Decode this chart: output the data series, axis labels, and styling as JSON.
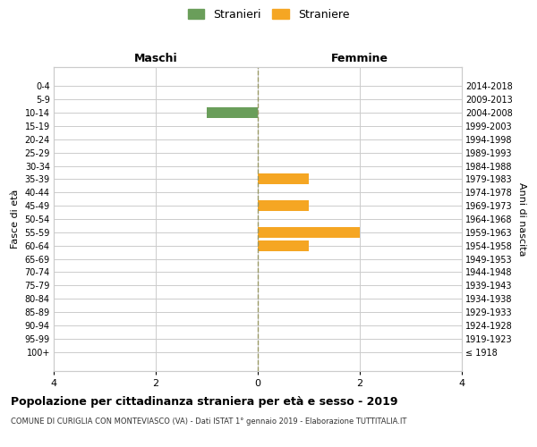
{
  "age_groups": [
    "100+",
    "95-99",
    "90-94",
    "85-89",
    "80-84",
    "75-79",
    "70-74",
    "65-69",
    "60-64",
    "55-59",
    "50-54",
    "45-49",
    "40-44",
    "35-39",
    "30-34",
    "25-29",
    "20-24",
    "15-19",
    "10-14",
    "5-9",
    "0-4"
  ],
  "birth_years": [
    "≤ 1918",
    "1919-1923",
    "1924-1928",
    "1929-1933",
    "1934-1938",
    "1939-1943",
    "1944-1948",
    "1949-1953",
    "1954-1958",
    "1959-1963",
    "1964-1968",
    "1969-1973",
    "1974-1978",
    "1979-1983",
    "1984-1988",
    "1989-1993",
    "1994-1998",
    "1999-2003",
    "2004-2008",
    "2009-2013",
    "2014-2018"
  ],
  "maschi": [
    0,
    0,
    0,
    0,
    0,
    0,
    0,
    0,
    0,
    0,
    0,
    0,
    0,
    0,
    0,
    0,
    0,
    0,
    1,
    0,
    0
  ],
  "femmine": [
    0,
    0,
    0,
    0,
    0,
    0,
    0,
    0,
    1,
    2,
    0,
    1,
    0,
    1,
    0,
    0,
    0,
    0,
    0,
    0,
    0
  ],
  "maschi_color": "#6a9e5a",
  "femmine_color": "#f5a623",
  "title": "Popolazione per cittadinanza straniera per età e sesso - 2019",
  "subtitle": "COMUNE DI CURIGLIA CON MONTEVIASCO (VA) - Dati ISTAT 1° gennaio 2019 - Elaborazione TUTTITALIA.IT",
  "legend_maschi": "Stranieri",
  "legend_femmine": "Straniere",
  "xlabel_left": "Maschi",
  "xlabel_right": "Femmine",
  "ylabel_left": "Fasce di età",
  "ylabel_right": "Anni di nascita",
  "xlim": 4,
  "background_color": "#ffffff",
  "grid_color": "#cccccc",
  "bar_height": 0.8,
  "spine_color": "#cccccc",
  "vline_color": "#999966"
}
